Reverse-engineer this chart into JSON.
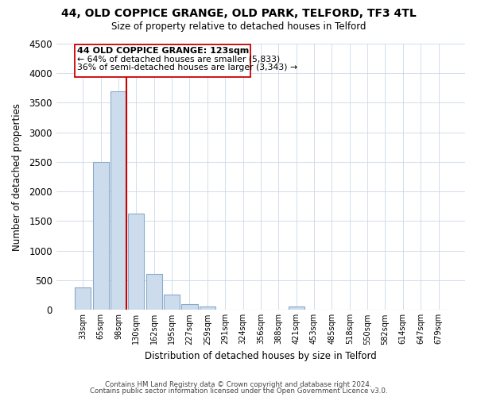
{
  "title": "44, OLD COPPICE GRANGE, OLD PARK, TELFORD, TF3 4TL",
  "subtitle": "Size of property relative to detached houses in Telford",
  "xlabel": "Distribution of detached houses by size in Telford",
  "ylabel": "Number of detached properties",
  "bar_labels": [
    "33sqm",
    "65sqm",
    "98sqm",
    "130sqm",
    "162sqm",
    "195sqm",
    "227sqm",
    "259sqm",
    "291sqm",
    "324sqm",
    "356sqm",
    "388sqm",
    "421sqm",
    "453sqm",
    "485sqm",
    "518sqm",
    "550sqm",
    "582sqm",
    "614sqm",
    "647sqm",
    "679sqm"
  ],
  "bar_values": [
    380,
    2500,
    3700,
    1630,
    600,
    250,
    100,
    60,
    0,
    0,
    0,
    0,
    50,
    0,
    0,
    0,
    0,
    0,
    0,
    0,
    0
  ],
  "bar_color": "#ccdcec",
  "bar_edge_color": "#88aacc",
  "marker_index": 2,
  "marker_color": "#cc0000",
  "ylim": [
    0,
    4500
  ],
  "yticks": [
    0,
    500,
    1000,
    1500,
    2000,
    2500,
    3000,
    3500,
    4000,
    4500
  ],
  "annotation_title": "44 OLD COPPICE GRANGE: 123sqm",
  "annotation_line1": "← 64% of detached houses are smaller (5,833)",
  "annotation_line2": "36% of semi-detached houses are larger (3,343) →",
  "footnote1": "Contains HM Land Registry data © Crown copyright and database right 2024.",
  "footnote2": "Contains public sector information licensed under the Open Government Licence v3.0.",
  "background_color": "#ffffff",
  "grid_color": "#ccd8e8"
}
